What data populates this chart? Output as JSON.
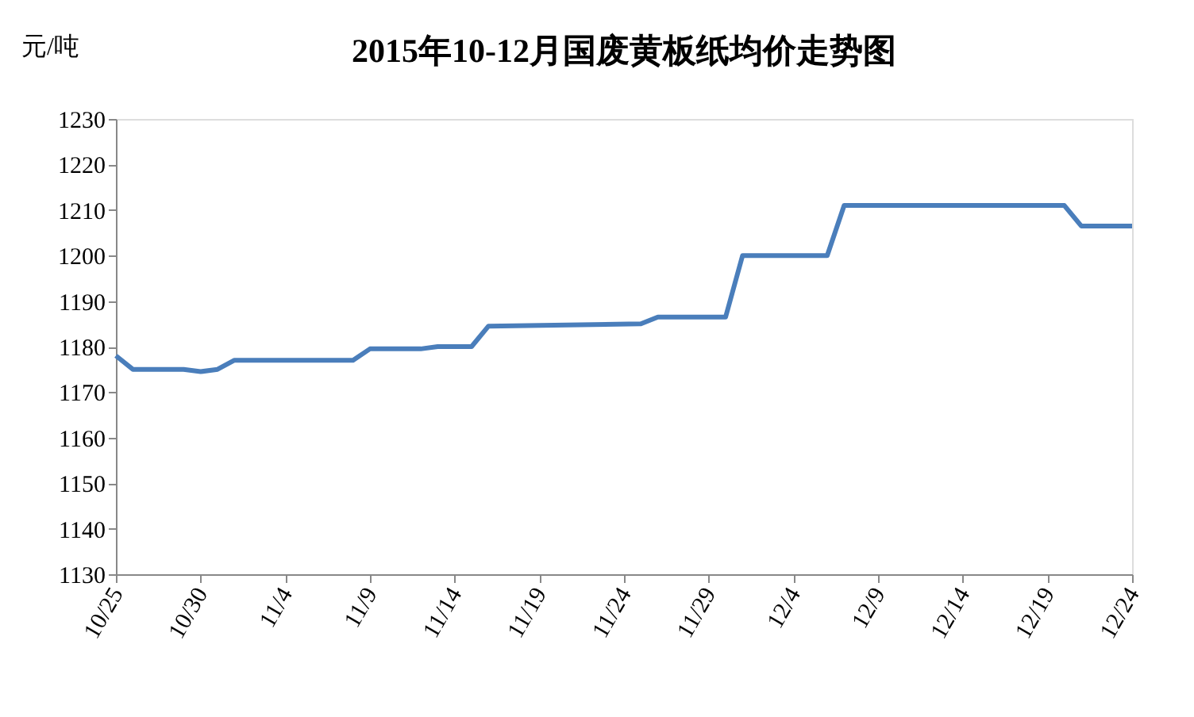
{
  "chart_data": {
    "type": "line",
    "title": "2015年10-12月国废黄板纸均价走势图",
    "ylabel": "元/吨",
    "x": [
      "--10-25",
      "--10-26",
      "--10-29",
      "--10-30",
      "--10-31",
      "--11-01",
      "--11-08",
      "--11-09",
      "--11-12",
      "--11-13",
      "--11-15",
      "--11-16",
      "--11-25",
      "--11-26",
      "--11-30",
      "--12-01",
      "--12-06",
      "--12-07",
      "--12-20",
      "--12-21",
      "--12-24"
    ],
    "series": [
      {
        "color": "#4a7ebb",
        "values": [
          1178,
          1175,
          1175,
          1174.5,
          1175,
          1177,
          1177,
          1179.5,
          1179.5,
          1180,
          1180,
          1184.5,
          1185,
          1186.5,
          1186.5,
          1200,
          1200,
          1211,
          1211,
          1206.5,
          1206.5
        ]
      }
    ],
    "ylim": [
      1130,
      1230
    ],
    "yticks": [
      1130,
      1140,
      1150,
      1160,
      1170,
      1180,
      1190,
      1200,
      1210,
      1220,
      1230
    ],
    "xlim": [
      "--10-25",
      "--12-24"
    ],
    "xticks": [
      {
        "value": "--10-25",
        "label": "10/25"
      },
      {
        "value": "--10-30",
        "label": "10/30"
      },
      {
        "value": "--11-04",
        "label": "11/4"
      },
      {
        "value": "--11-09",
        "label": "11/9"
      },
      {
        "value": "--11-14",
        "label": "11/14"
      },
      {
        "value": "--11-19",
        "label": "11/19"
      },
      {
        "value": "--11-24",
        "label": "11/24"
      },
      {
        "value": "--11-29",
        "label": "11/29"
      },
      {
        "value": "--12-04",
        "label": "12/4"
      },
      {
        "value": "--12-09",
        "label": "12/9"
      },
      {
        "value": "--12-14",
        "label": "12/14"
      },
      {
        "value": "--12-19",
        "label": "12/19"
      },
      {
        "value": "--12-24",
        "label": "12/24"
      }
    ],
    "grid": false,
    "marker": "none",
    "line_style": "solid"
  }
}
